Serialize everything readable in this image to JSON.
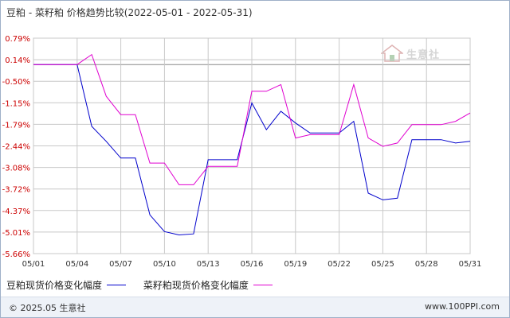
{
  "header": {
    "title": "豆粕 - 菜籽粕 价格趋势比较(2022-05-01 - 2022-05-31)"
  },
  "watermark": {
    "text": "生意社",
    "icon": "house-logo-icon"
  },
  "legend": [
    {
      "label": "豆粕现货价格变化幅度",
      "color": "#0000cc"
    },
    {
      "label": "菜籽粕现货价格变化幅度",
      "color": "#e000d0"
    }
  ],
  "footer": {
    "copyright": "© 2025.05 生意社",
    "website": "www.100PPI.com"
  },
  "colors": {
    "axis_label_red": "#cc0000",
    "grid": "#c8c8c8",
    "zero_line": "#888888"
  },
  "chart_data": {
    "type": "line",
    "x": [
      "05/01",
      "05/02",
      "05/03",
      "05/04",
      "05/05",
      "05/06",
      "05/07",
      "05/08",
      "05/09",
      "05/10",
      "05/11",
      "05/12",
      "05/13",
      "05/14",
      "05/15",
      "05/16",
      "05/17",
      "05/18",
      "05/19",
      "05/20",
      "05/21",
      "05/22",
      "05/23",
      "05/24",
      "05/25",
      "05/26",
      "05/27",
      "05/28",
      "05/29",
      "05/30",
      "05/31"
    ],
    "x_tick_labels": [
      "05/01",
      "05/04",
      "05/07",
      "05/10",
      "05/13",
      "05/16",
      "05/19",
      "05/22",
      "05/25",
      "05/28",
      "05/31"
    ],
    "y_tick_labels": [
      "0.79%",
      "0.14%",
      "-0.50%",
      "-1.15%",
      "-1.79%",
      "-2.44%",
      "-3.08%",
      "-3.72%",
      "-4.37%",
      "-5.01%",
      "-5.66%"
    ],
    "ylim": [
      -5.66,
      0.79
    ],
    "grid": true,
    "legend_position": "bottom",
    "series": [
      {
        "name": "豆粕现货价格变化幅度",
        "color": "#0000cc",
        "values": [
          0,
          0,
          0,
          0,
          -1.85,
          -2.3,
          -2.8,
          -2.8,
          -4.5,
          -5.0,
          -5.1,
          -5.07,
          -2.85,
          -2.85,
          -2.85,
          -1.15,
          -1.95,
          -1.4,
          -1.75,
          -2.05,
          -2.05,
          -2.05,
          -1.7,
          -3.85,
          -4.05,
          -4.0,
          -2.25,
          -2.25,
          -2.25,
          -2.35,
          -2.3
        ]
      },
      {
        "name": "菜籽粕现货价格变化幅度",
        "color": "#e000d0",
        "values": [
          0,
          0,
          0,
          0,
          0.3,
          -0.95,
          -1.5,
          -1.5,
          -2.95,
          -2.95,
          -3.6,
          -3.6,
          -3.05,
          -3.05,
          -3.05,
          -0.8,
          -0.8,
          -0.6,
          -2.2,
          -2.1,
          -2.1,
          -2.1,
          -0.6,
          -2.2,
          -2.45,
          -2.35,
          -1.8,
          -1.8,
          -1.8,
          -1.7,
          -1.45
        ]
      }
    ]
  }
}
